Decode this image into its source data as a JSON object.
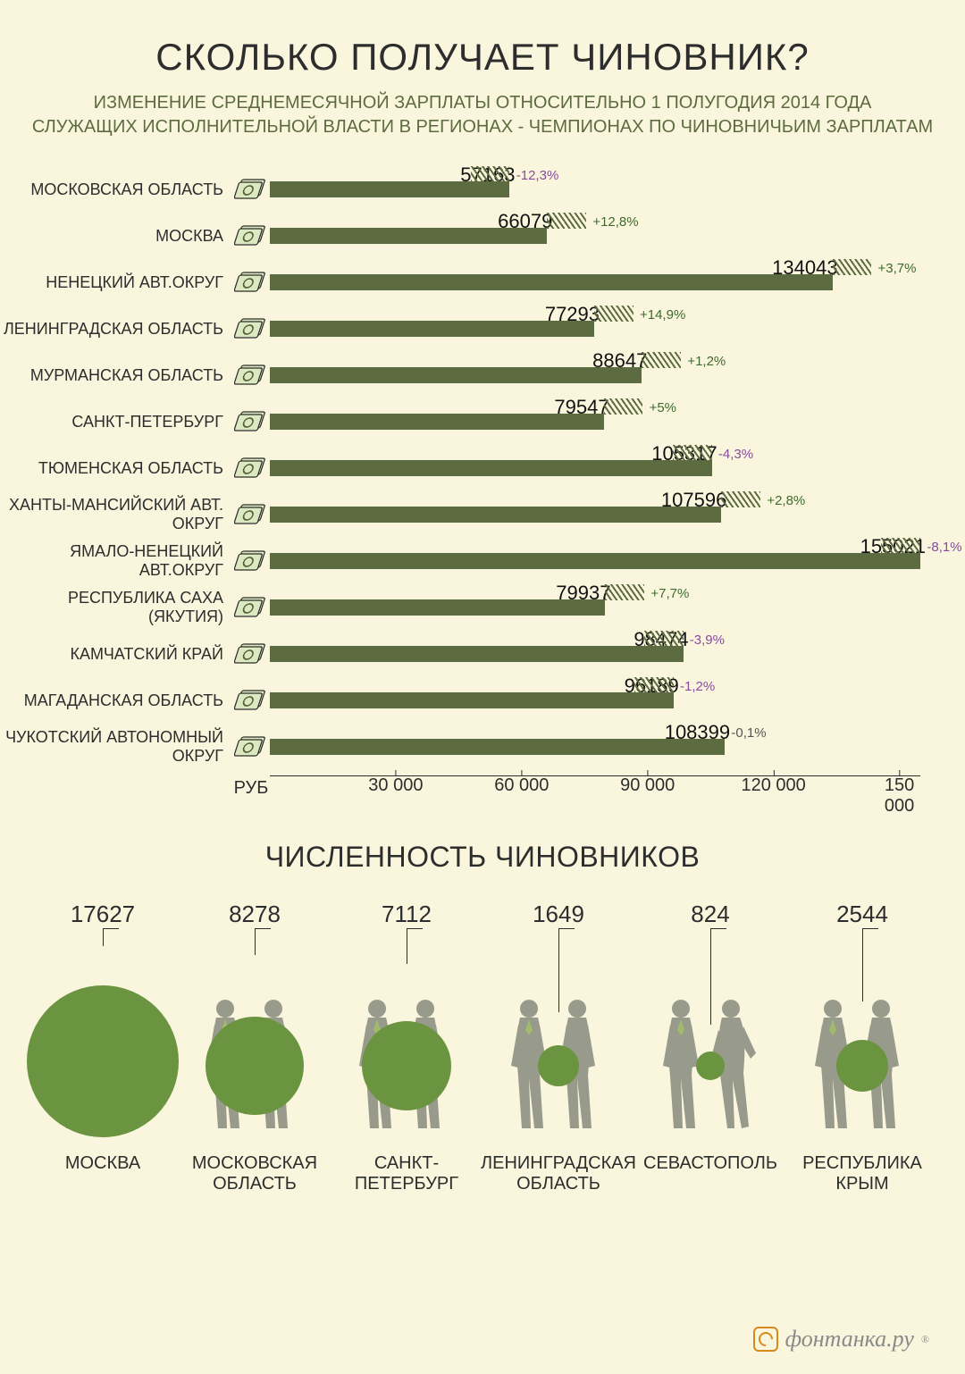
{
  "title": "СКОЛЬКО ПОЛУЧАЕТ ЧИНОВНИК?",
  "subtitle_line1": "ИЗМЕНЕНИЕ СРЕДНЕМЕСЯЧНОЙ ЗАРПЛАТЫ ОТНОСИТЕЛЬНО 1 ПОЛУГОДИЯ 2014 ГОДА",
  "subtitle_line2": "СЛУЖАЩИХ ИСПОЛНИТЕЛЬНОЙ ВЛАСТИ В РЕГИОНАХ - ЧЕМПИОНАХ ПО ЧИНОВНИЧЬИМ ЗАРПЛАТАМ",
  "chart": {
    "type": "bar",
    "axis_unit": "РУБ",
    "x_max": 155000,
    "bar_color": "#5d6b40",
    "hatch_color": "#5d6b40",
    "positive_color": "#3d6b2e",
    "negative_color": "#8a4aa0",
    "neutral_color": "#555555",
    "value_fontsize": 22,
    "label_fontsize": 18,
    "change_fontsize": 15,
    "hatch_width_pct": 6,
    "ticks": [
      "30 000",
      "60 000",
      "90 000",
      "120 000",
      "150 000"
    ],
    "tick_values": [
      30000,
      60000,
      90000,
      120000,
      150000
    ],
    "rows": [
      {
        "label": "МОСКОВСКАЯ ОБЛАСТЬ",
        "value": 57163,
        "change": "-12,3%",
        "dir": "neg"
      },
      {
        "label": "МОСКВА",
        "value": 66079,
        "change": "+12,8%",
        "dir": "pos"
      },
      {
        "label": "НЕНЕЦКИЙ АВТ.ОКРУГ",
        "value": 134043,
        "change": "+3,7%",
        "dir": "pos"
      },
      {
        "label": "ЛЕНИНГРАДСКАЯ ОБЛАСТЬ",
        "value": 77293,
        "change": "+14,9%",
        "dir": "pos"
      },
      {
        "label": "МУРМАНСКАЯ ОБЛАСТЬ",
        "value": 88647,
        "change": "+1,2%",
        "dir": "pos"
      },
      {
        "label": "САНКТ-ПЕТЕРБУРГ",
        "value": 79547,
        "change": "+5%",
        "dir": "pos"
      },
      {
        "label": "ТЮМЕНСКАЯ ОБЛАСТЬ",
        "value": 105317,
        "change": "-4,3%",
        "dir": "neg"
      },
      {
        "label": "ХАНТЫ-МАНСИЙСКИЙ АВТ. ОКРУГ",
        "value": 107596,
        "change": "+2,8%",
        "dir": "pos"
      },
      {
        "label": "ЯМАЛО-НЕНЕЦКИЙ АВТ.ОКРУГ",
        "value": 155021,
        "change": "-8,1%",
        "dir": "neg"
      },
      {
        "label": "РЕСПУБЛИКА САХА (ЯКУТИЯ)",
        "value": 79937,
        "change": "+7,7%",
        "dir": "pos"
      },
      {
        "label": "КАМЧАТСКИЙ КРАЙ",
        "value": 98474,
        "change": "-3,9%",
        "dir": "neg"
      },
      {
        "label": "МАГАДАНСКАЯ ОБЛАСТЬ",
        "value": 96189,
        "change": "-1,2%",
        "dir": "neg"
      },
      {
        "label": "ЧУКОТСКИЙ АВТОНОМНЫЙ ОКРУГ",
        "value": 108399,
        "change": "-0,1%",
        "dir": "neu"
      }
    ]
  },
  "section2_title": "ЧИСЛЕННОСТЬ ЧИНОВНИКОВ",
  "people": {
    "bubble_color": "#6b9441",
    "silhouette_color": "#989a8b",
    "max_bubble_diameter": 170,
    "count_fontsize": 26,
    "label_fontsize": 20,
    "regions": [
      {
        "label": "МОСКВА",
        "count": 17627,
        "bubble": 170
      },
      {
        "label": "МОСКОВСКАЯ ОБЛАСТЬ",
        "count": 8278,
        "bubble": 110
      },
      {
        "label": "САНКТ-ПЕТЕРБУРГ",
        "count": 7112,
        "bubble": 100
      },
      {
        "label": "ЛЕНИНГРАДСКАЯ ОБЛАСТЬ",
        "count": 1649,
        "bubble": 46
      },
      {
        "label": "СЕВАСТОПОЛЬ",
        "count": 824,
        "bubble": 32
      },
      {
        "label": "РЕСПУБЛИКА КРЫМ",
        "count": 2544,
        "bubble": 58
      }
    ]
  },
  "footer": "фонтанка.ру",
  "footer_reg": "®"
}
